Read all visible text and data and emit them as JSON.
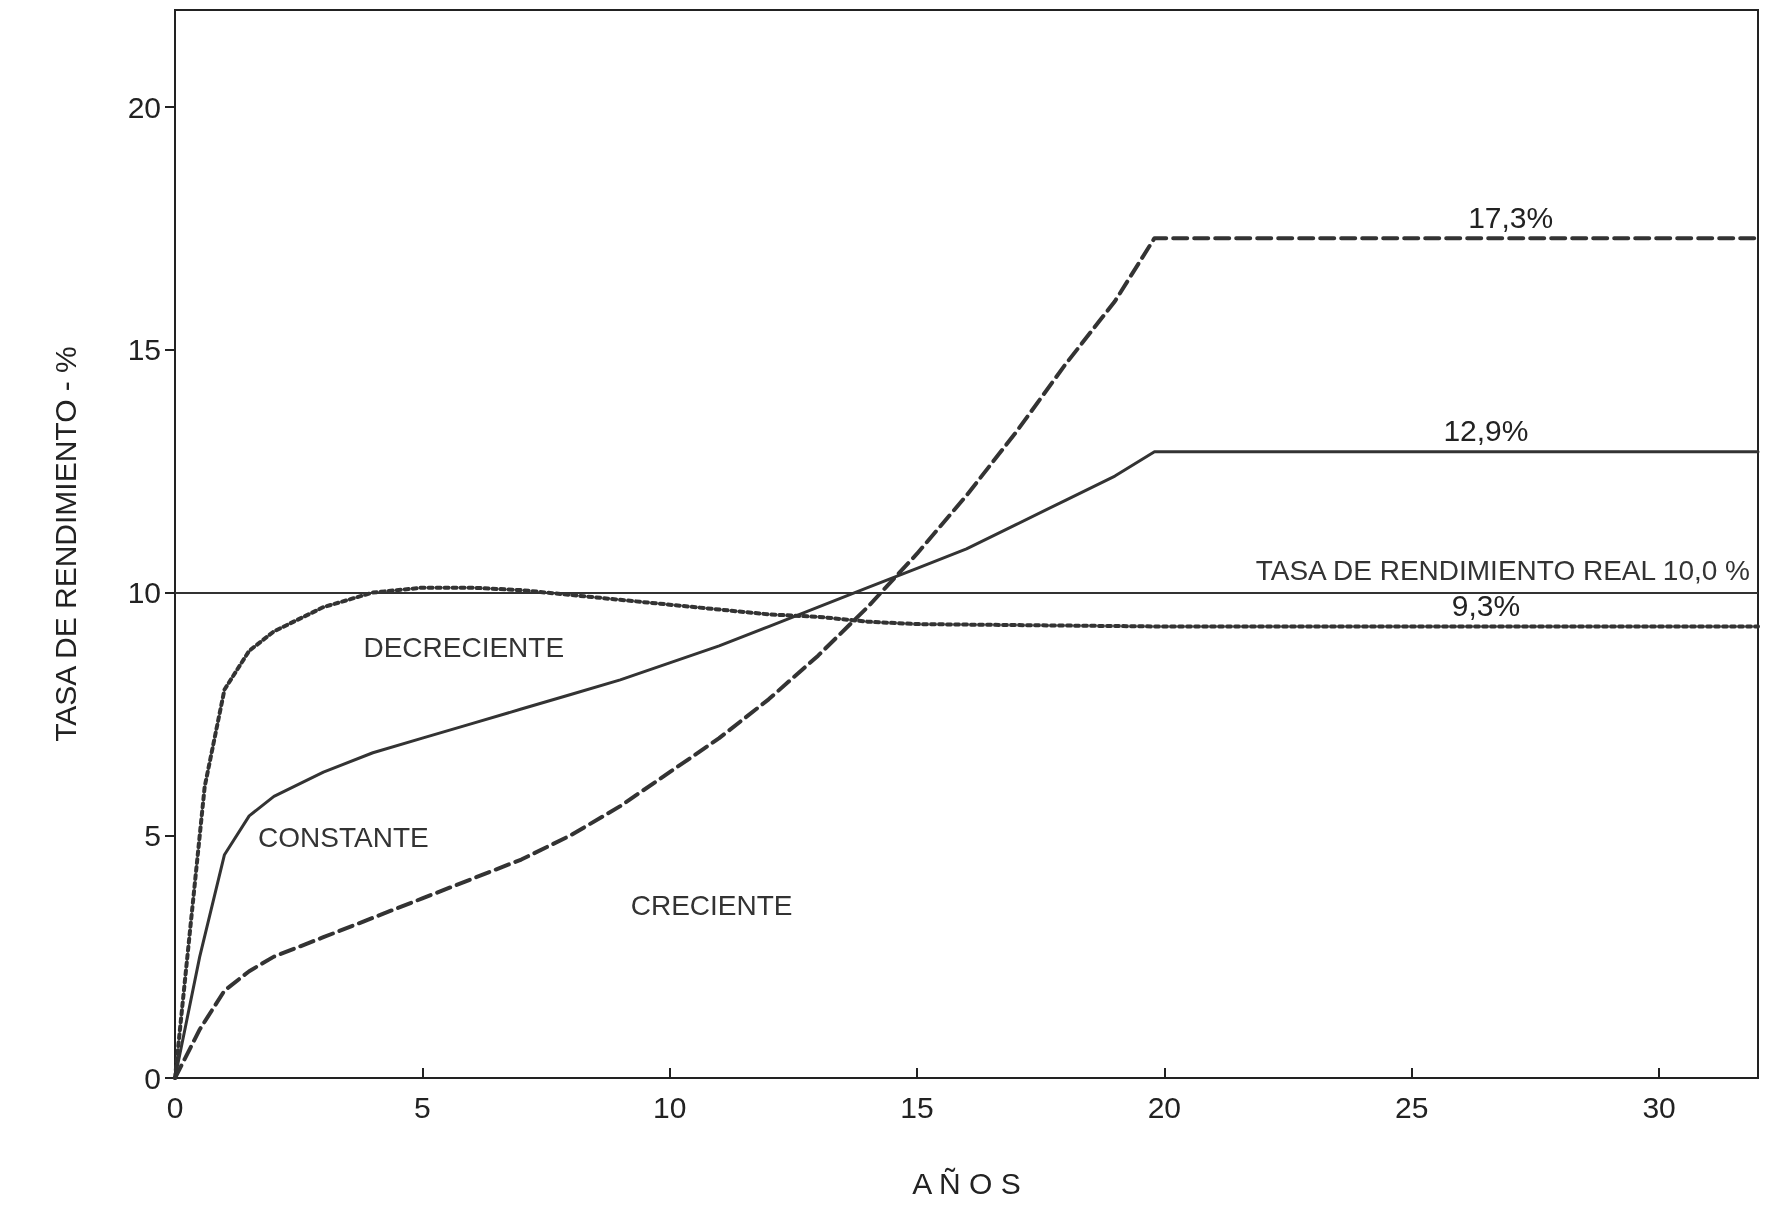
{
  "chart_data": {
    "type": "line",
    "xlabel": "A Ñ O S",
    "ylabel": "TASA DE RENDIMIENTO - %",
    "xlim": [
      0,
      32
    ],
    "xticks": [
      0,
      5,
      10,
      15,
      20,
      25,
      30
    ],
    "ylim": [
      0,
      22
    ],
    "yticks": [
      0,
      5,
      10,
      15,
      20
    ],
    "grid": false,
    "legend": false,
    "marker": "none",
    "series": [
      {
        "name": "DECRECIENTE",
        "color": "#333333",
        "line_style": "dotted",
        "x": [
          0,
          0.3,
          0.6,
          1,
          1.5,
          2,
          3,
          4,
          5,
          6,
          7,
          8,
          9,
          10,
          11,
          12,
          13,
          14,
          15,
          20,
          26.5,
          32
        ],
        "values": [
          0,
          3,
          6,
          8,
          8.8,
          9.2,
          9.7,
          10,
          10.1,
          10.1,
          10.05,
          9.95,
          9.85,
          9.75,
          9.65,
          9.55,
          9.5,
          9.4,
          9.35,
          9.3,
          9.3,
          9.3
        ],
        "value_labels": [
          null,
          null,
          null,
          null,
          null,
          null,
          null,
          null,
          null,
          null,
          null,
          null,
          null,
          null,
          null,
          null,
          null,
          null,
          null,
          null,
          "9,3%",
          null
        ]
      },
      {
        "name": "CONSTANTE",
        "color": "#333333",
        "line_style": "solid",
        "x": [
          0,
          0.5,
          1,
          1.5,
          2,
          3,
          4,
          5,
          6,
          7,
          8,
          9,
          10,
          11,
          12,
          13,
          14,
          15,
          16,
          17,
          18,
          19,
          19.8,
          26.5,
          32
        ],
        "values": [
          0,
          2.5,
          4.6,
          5.4,
          5.8,
          6.3,
          6.7,
          7,
          7.3,
          7.6,
          7.9,
          8.2,
          8.55,
          8.9,
          9.3,
          9.7,
          10.1,
          10.5,
          10.9,
          11.4,
          11.9,
          12.4,
          12.9,
          12.9,
          12.9
        ],
        "value_labels": [
          null,
          null,
          null,
          null,
          null,
          null,
          null,
          null,
          null,
          null,
          null,
          null,
          null,
          null,
          null,
          null,
          null,
          null,
          null,
          null,
          null,
          null,
          null,
          "12,9%",
          null
        ]
      },
      {
        "name": "CRECIENTE",
        "color": "#333333",
        "line_style": "dashed",
        "x": [
          0,
          0.5,
          1,
          1.5,
          2,
          3,
          4,
          5,
          6,
          7,
          8,
          9,
          10,
          11,
          12,
          13,
          14,
          15,
          16,
          17,
          18,
          19,
          19.8,
          27,
          32
        ],
        "values": [
          0,
          1,
          1.8,
          2.2,
          2.5,
          2.9,
          3.3,
          3.7,
          4.1,
          4.5,
          5,
          5.6,
          6.3,
          7,
          7.8,
          8.7,
          9.7,
          10.8,
          12,
          13.3,
          14.7,
          16,
          17.3,
          17.3,
          17.3
        ],
        "value_labels": [
          null,
          null,
          null,
          null,
          null,
          null,
          null,
          null,
          null,
          null,
          null,
          null,
          null,
          null,
          null,
          null,
          null,
          null,
          null,
          null,
          null,
          null,
          null,
          "17,3%",
          null
        ]
      }
    ],
    "ref_lines": [
      {
        "axis": "y",
        "value": 10,
        "label": "TASA DE RENDIMIENTO REAL 10,0 %",
        "color": "#333333"
      }
    ]
  }
}
